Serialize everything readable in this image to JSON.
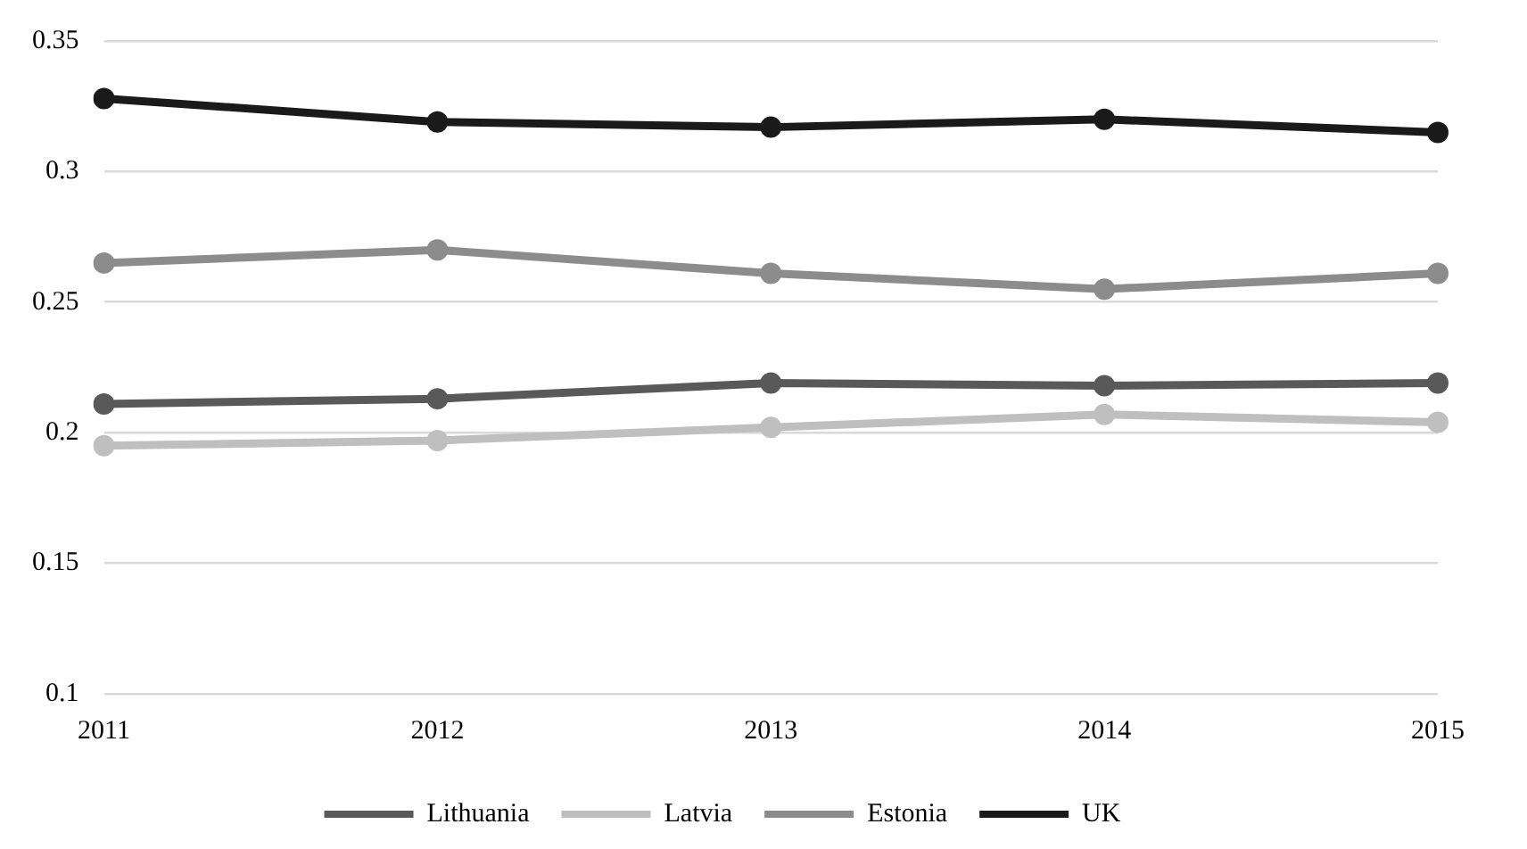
{
  "chart_data": {
    "type": "line",
    "categories": [
      "2011",
      "2012",
      "2013",
      "2014",
      "2015"
    ],
    "series": [
      {
        "name": "Lithuania",
        "color": "#595959",
        "values": [
          0.211,
          0.213,
          0.219,
          0.218,
          0.219
        ]
      },
      {
        "name": "Latvia",
        "color": "#bfbfbf",
        "values": [
          0.195,
          0.197,
          0.202,
          0.207,
          0.204
        ]
      },
      {
        "name": "Estonia",
        "color": "#8c8c8c",
        "values": [
          0.265,
          0.27,
          0.261,
          0.255,
          0.261
        ]
      },
      {
        "name": "UK",
        "color": "#1a1a1a",
        "values": [
          0.328,
          0.319,
          0.317,
          0.32,
          0.315
        ]
      }
    ],
    "ylim": [
      0.1,
      0.35
    ],
    "yticks": [
      0.1,
      0.15,
      0.2,
      0.25,
      0.3,
      0.35
    ],
    "grid": "y",
    "legend": "bottom",
    "marker": "circle",
    "line_style": "solid"
  }
}
